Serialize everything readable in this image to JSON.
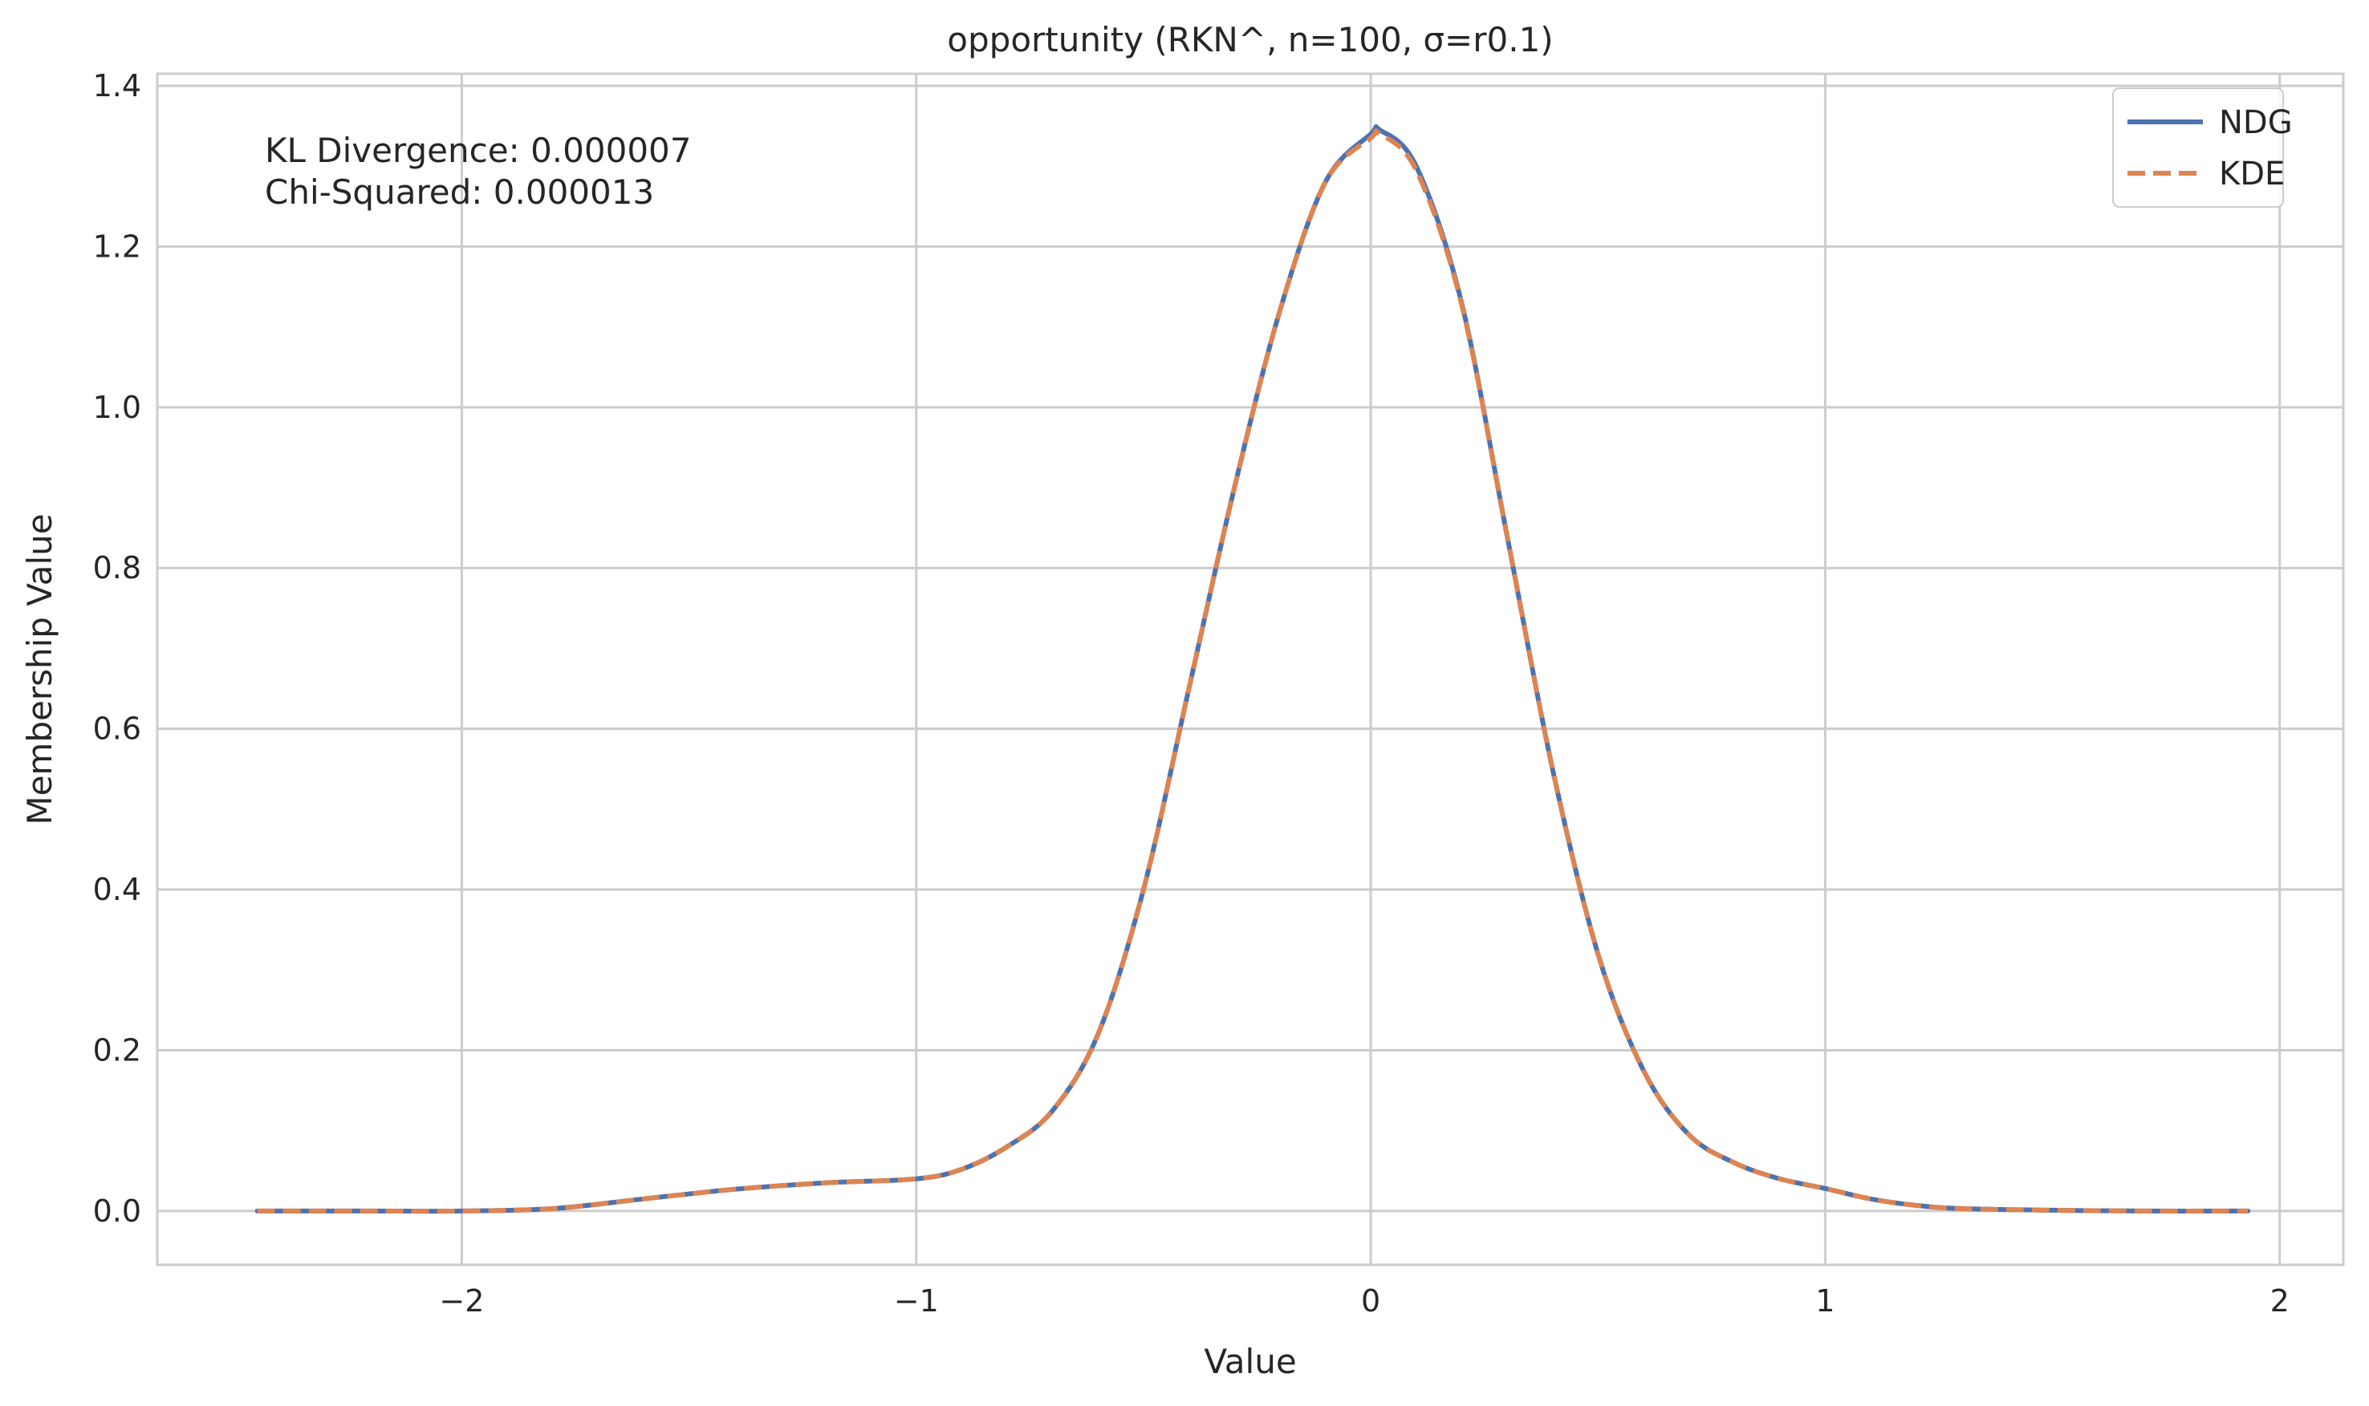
{
  "chart_data": {
    "type": "line",
    "title": "opportunity (RKN^, n=100, σ=r0.1)",
    "xlabel": "Value",
    "ylabel": "Membership Value",
    "xlim": [
      -2.67,
      2.14
    ],
    "ylim": [
      -0.067,
      1.415
    ],
    "xticks": [
      -2,
      -1,
      0,
      1,
      2
    ],
    "xtick_labels": [
      "−2",
      "−1",
      "0",
      "1",
      "2"
    ],
    "yticks": [
      0.0,
      0.2,
      0.4,
      0.6,
      0.8,
      1.0,
      1.2,
      1.4
    ],
    "ytick_labels": [
      "0.0",
      "0.2",
      "0.4",
      "0.6",
      "0.8",
      "1.0",
      "1.2",
      "1.4"
    ],
    "grid": true,
    "legend_position": "top-right",
    "annotations": [
      "KL Divergence: 0.000007",
      "Chi-Squared: 0.000013"
    ],
    "series": [
      {
        "name": "NDG",
        "color": "#4c72b0",
        "style": "solid",
        "x": [
          -2.45,
          -2.2,
          -2.0,
          -1.8,
          -1.6,
          -1.4,
          -1.2,
          -1.0,
          -0.9,
          -0.8,
          -0.7,
          -0.6,
          -0.5,
          -0.4,
          -0.3,
          -0.2,
          -0.1,
          0.0,
          0.02,
          0.1,
          0.2,
          0.3,
          0.4,
          0.5,
          0.6,
          0.7,
          0.8,
          0.9,
          1.0,
          1.1,
          1.2,
          1.3,
          1.5,
          1.7,
          1.93
        ],
        "y": [
          0.0,
          0.0,
          0.0,
          0.003,
          0.015,
          0.027,
          0.035,
          0.04,
          0.052,
          0.08,
          0.125,
          0.22,
          0.4,
          0.65,
          0.9,
          1.12,
          1.28,
          1.34,
          1.345,
          1.3,
          1.13,
          0.84,
          0.55,
          0.32,
          0.175,
          0.095,
          0.06,
          0.04,
          0.028,
          0.015,
          0.007,
          0.003,
          0.001,
          0.0,
          0.0
        ]
      },
      {
        "name": "KDE",
        "color": "#dd8452",
        "style": "dashed",
        "x": [
          -2.45,
          -2.2,
          -2.0,
          -1.8,
          -1.6,
          -1.4,
          -1.2,
          -1.0,
          -0.9,
          -0.8,
          -0.7,
          -0.6,
          -0.5,
          -0.4,
          -0.3,
          -0.2,
          -0.1,
          0.0,
          0.02,
          0.1,
          0.2,
          0.3,
          0.4,
          0.5,
          0.6,
          0.7,
          0.8,
          0.9,
          1.0,
          1.1,
          1.2,
          1.3,
          1.5,
          1.7,
          1.93
        ],
        "y": [
          0.0,
          0.0,
          0.0,
          0.003,
          0.015,
          0.027,
          0.035,
          0.04,
          0.052,
          0.08,
          0.125,
          0.22,
          0.4,
          0.65,
          0.9,
          1.12,
          1.28,
          1.335,
          1.34,
          1.295,
          1.128,
          0.84,
          0.55,
          0.32,
          0.175,
          0.095,
          0.06,
          0.04,
          0.028,
          0.015,
          0.007,
          0.003,
          0.001,
          0.0,
          0.0
        ]
      }
    ]
  }
}
